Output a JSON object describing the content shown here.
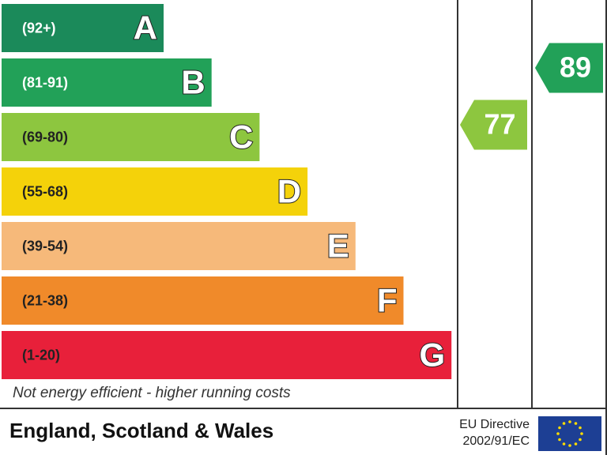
{
  "chart_data": {
    "type": "epc",
    "bands": [
      {
        "range": "(92+)",
        "letter": "A",
        "color": "#1b8a5a",
        "text_color": "#ffffff"
      },
      {
        "range": "(81-91)",
        "letter": "B",
        "color": "#22a158",
        "text_color": "#ffffff"
      },
      {
        "range": "(69-80)",
        "letter": "C",
        "color": "#8dc63f",
        "text_color": "#222222"
      },
      {
        "range": "(55-68)",
        "letter": "D",
        "color": "#f4d20a",
        "text_color": "#222222"
      },
      {
        "range": "(39-54)",
        "letter": "E",
        "color": "#f6b97a",
        "text_color": "#222222"
      },
      {
        "range": "(21-38)",
        "letter": "F",
        "color": "#f08a2a",
        "text_color": "#222222"
      },
      {
        "range": "(1-20)",
        "letter": "G",
        "color": "#e8203a",
        "text_color": "#222222"
      }
    ],
    "current": {
      "value": 77,
      "color": "#8dc63f"
    },
    "potential": {
      "value": 89,
      "color": "#22a158"
    },
    "footnote": "Not energy efficient - higher running costs",
    "region": "England, Scotland & Wales",
    "directive": [
      "EU Directive",
      "2002/91/EC"
    ]
  }
}
